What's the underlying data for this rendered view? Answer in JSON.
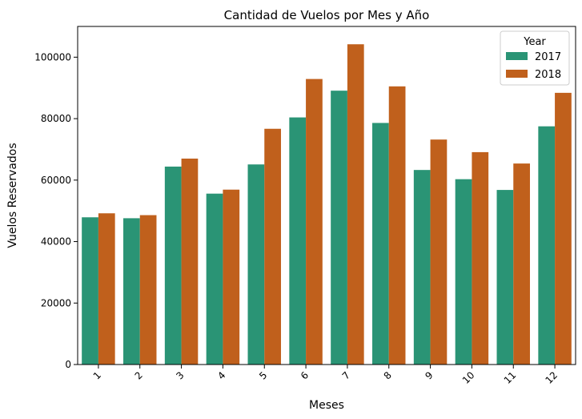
{
  "chart_data": {
    "type": "bar",
    "title": "Cantidad de Vuelos por Mes y Año",
    "xlabel": "Meses",
    "ylabel": "Vuelos Reservados",
    "categories": [
      "1",
      "2",
      "3",
      "4",
      "5",
      "6",
      "7",
      "8",
      "9",
      "10",
      "11",
      "12"
    ],
    "ylim": [
      0,
      110000
    ],
    "yticks": [
      0,
      20000,
      40000,
      60000,
      80000,
      100000
    ],
    "ytick_labels": [
      "0",
      "20000",
      "40000",
      "60000",
      "80000",
      "100000"
    ],
    "grid": false,
    "legend": {
      "title": "Year",
      "placement": "top-right"
    },
    "series": [
      {
        "name": "2017",
        "color": "#2a9475",
        "values": [
          47900,
          47600,
          64400,
          55600,
          65100,
          80400,
          89100,
          78600,
          63300,
          60300,
          56800,
          77500
        ]
      },
      {
        "name": "2018",
        "color": "#c0601c",
        "values": [
          49200,
          48600,
          67000,
          56900,
          76700,
          92900,
          104200,
          90500,
          73200,
          69100,
          65400,
          88400
        ]
      }
    ]
  }
}
